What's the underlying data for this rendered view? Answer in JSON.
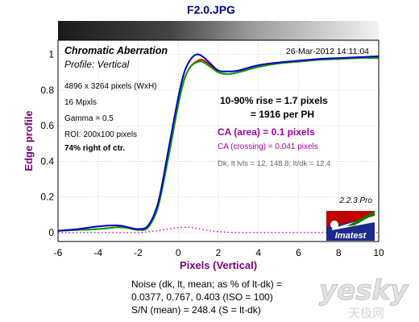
{
  "file_title": "F2.0.JPG",
  "panel": {
    "title": "Chromatic Aberration",
    "subtitle": "Profile: Vertical",
    "timestamp": "26-Mar-2012 14:11:04",
    "info_lines": [
      "4896 x 3264 pixels (WxH)",
      "16 Mpxls",
      "Gamma = 0.5",
      "ROI: 200x100 pixels"
    ],
    "position_note": "74% right of ctr.",
    "rise_line1": "10-90% rise = 1.7 pixels",
    "rise_line2": "= 1916 per PH",
    "ca_area": "CA (area) = 0.1 pixels",
    "ca_crossing": "CA (crossing) = 0.041 pixels",
    "levels": "Dk, lt lvls = 12, 148.8;  lt/dk = 12.4",
    "version": "2.2.3 Pro",
    "logo_text": "Imatest"
  },
  "footer": {
    "line1": "Noise (dk, lt, mean; as % of lt-dk) =",
    "line2": "0.0377,  0.767,  0.403  (ISO =  100)",
    "line3": "S/N (mean) = 248.4  (S = lt-dk)"
  },
  "watermark": {
    "brand": "yesky",
    "sub": "天极网"
  },
  "colors": {
    "red": "#e00000",
    "green": "#00a000",
    "blue": "#0000cc",
    "diff": "#cc00cc",
    "axis_label": "#7a0080"
  },
  "chart_data": {
    "type": "line",
    "xlabel": "Pixels (Vertical)",
    "ylabel": "Edge profile",
    "xlim": [
      -6,
      10
    ],
    "ylim": [
      -0.05,
      1.08
    ],
    "xticks": [
      -6,
      -4,
      -2,
      0,
      2,
      4,
      6,
      8,
      10
    ],
    "yticks": [
      0,
      0.2,
      0.4,
      0.6,
      0.8,
      1
    ],
    "grid": true,
    "series": [
      {
        "color": "red",
        "x": [
          -6,
          -5,
          -4,
          -3,
          -2.5,
          -2,
          -1.5,
          -1,
          -0.5,
          0,
          0.3,
          0.6,
          0.9,
          1.2,
          1.6,
          2,
          2.5,
          3,
          4,
          5,
          6,
          7,
          8,
          9,
          10
        ],
        "y": [
          0.01,
          0.015,
          0.02,
          0.03,
          0.025,
          0.015,
          0.03,
          0.15,
          0.42,
          0.72,
          0.86,
          0.93,
          0.96,
          0.97,
          0.94,
          0.9,
          0.89,
          0.9,
          0.93,
          0.95,
          0.96,
          0.97,
          0.975,
          0.98,
          0.985
        ]
      },
      {
        "color": "green",
        "x": [
          -6,
          -5,
          -4,
          -3,
          -2.5,
          -2,
          -1.5,
          -1,
          -0.5,
          0,
          0.3,
          0.6,
          0.9,
          1.2,
          1.6,
          2,
          2.5,
          3,
          4,
          5,
          6,
          7,
          8,
          9,
          10
        ],
        "y": [
          0.01,
          0.015,
          0.02,
          0.03,
          0.025,
          0.015,
          0.03,
          0.15,
          0.42,
          0.72,
          0.86,
          0.93,
          0.955,
          0.96,
          0.93,
          0.9,
          0.89,
          0.9,
          0.93,
          0.95,
          0.96,
          0.97,
          0.975,
          0.98,
          0.98
        ]
      },
      {
        "color": "blue",
        "x": [
          -6,
          -5,
          -4,
          -3,
          -2.5,
          -2,
          -1.5,
          -1,
          -0.5,
          0,
          0.3,
          0.6,
          0.9,
          1.2,
          1.6,
          2,
          2.5,
          3,
          4,
          5,
          6,
          7,
          8,
          9,
          10
        ],
        "y": [
          0.01,
          0.02,
          0.035,
          0.04,
          0.03,
          0.02,
          0.04,
          0.17,
          0.46,
          0.76,
          0.9,
          0.97,
          1.0,
          0.99,
          0.95,
          0.91,
          0.905,
          0.91,
          0.94,
          0.955,
          0.965,
          0.975,
          0.98,
          0.985,
          0.99
        ]
      },
      {
        "color": "diff",
        "dotted": true,
        "x": [
          -6,
          -5,
          -4,
          -3,
          -2,
          -1.5,
          -1,
          -0.5,
          0,
          0.5,
          1,
          1.5,
          2,
          3,
          4,
          5,
          6,
          7,
          8,
          9,
          10
        ],
        "y": [
          0,
          0,
          0,
          0,
          0,
          0.005,
          0.012,
          0.02,
          0.028,
          0.03,
          0.022,
          0.012,
          0.005,
          0,
          0,
          0,
          0,
          0,
          0,
          0,
          0
        ]
      }
    ]
  }
}
